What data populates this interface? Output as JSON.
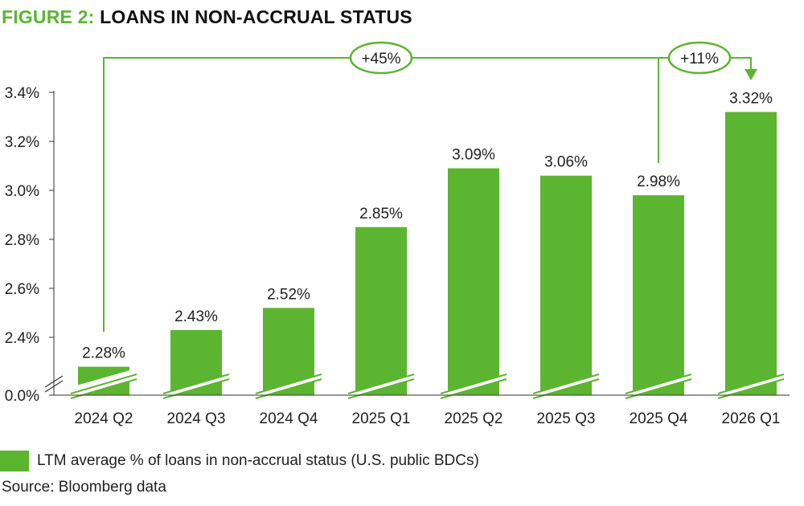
{
  "header": {
    "title_prefix": "FIGURE 2:",
    "title_main": "LOANS IN NON-ACCRUAL STATUS"
  },
  "chart_data": {
    "type": "bar",
    "categories": [
      "2024 Q2",
      "2024 Q3",
      "2024 Q4",
      "2025 Q1",
      "2025 Q2",
      "2025 Q3",
      "2025 Q4",
      "2026 Q1"
    ],
    "series": [
      {
        "name": "LTM average % of loans in non-accrual status (U.S. public BDCs)",
        "values": [
          2.28,
          2.43,
          2.52,
          2.85,
          3.09,
          3.06,
          2.98,
          3.32
        ],
        "color": "#5cb531"
      }
    ],
    "data_labels": [
      "2.28%",
      "2.43%",
      "2.52%",
      "2.85%",
      "3.09%",
      "3.06%",
      "2.98%",
      "3.32%"
    ],
    "y_ticks": [
      "0.0%",
      "2.4%",
      "2.6%",
      "2.8%",
      "3.0%",
      "3.2%",
      "3.4%"
    ],
    "y_tick_values": [
      0.0,
      2.4,
      2.6,
      2.8,
      3.0,
      3.2,
      3.4
    ],
    "ylim_upper": [
      2.2,
      3.45
    ],
    "axis_break": true,
    "annotations": [
      {
        "text": "+45%",
        "from": "2024 Q2",
        "to": "2026 Q1"
      },
      {
        "text": "+11%",
        "from": "2025 Q4",
        "to": "2026 Q1"
      }
    ],
    "grid": false,
    "legend_position": "bottom-left",
    "accent_color": "#5cb531"
  },
  "legend": {
    "label": "LTM average % of loans in non-accrual status (U.S. public BDCs)"
  },
  "source": {
    "text": "Source: Bloomberg data"
  }
}
